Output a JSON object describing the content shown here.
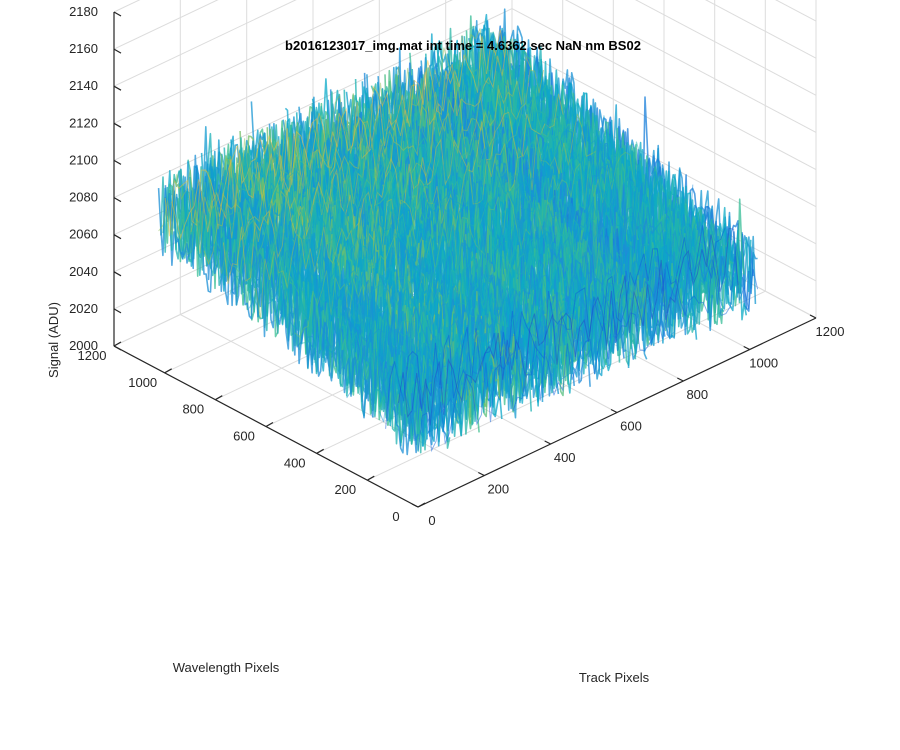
{
  "chart_data": {
    "type": "surface",
    "title": "b2016123017_img.mat int time = 4.6362 sec  NaN nm BS02",
    "xlabel": "Track Pixels",
    "ylabel": "Wavelength Pixels",
    "zlabel": "Signal (ADU)",
    "xlim": [
      0,
      1200
    ],
    "ylim": [
      0,
      1200
    ],
    "zlim": [
      2000,
      2180
    ],
    "xticks": [
      "0",
      "200",
      "400",
      "600",
      "800",
      "1000",
      "1200"
    ],
    "yticks": [
      "0",
      "200",
      "400",
      "600",
      "800",
      "1000",
      "1200"
    ],
    "zticks": [
      "2000",
      "2020",
      "2040",
      "2060",
      "2080",
      "2100",
      "2120",
      "2140",
      "2160",
      "2180"
    ],
    "grid": true,
    "colormap": "parula",
    "surface_extent": {
      "x": [
        0,
        1024
      ],
      "y": [
        0,
        1024
      ]
    },
    "surface_signal": {
      "low_corner_x0_y0": 2045,
      "high_corner_x0_y1024": 2085,
      "mid": 2075,
      "far_corner_x1024_y1024": 2085,
      "near_corner_x1024_y0": 2040,
      "noise_span": 45
    }
  },
  "colors": {
    "axis": "#262626",
    "grid": "#dcdcdc",
    "colormap_stops": [
      "#3e26a8",
      "#0f5ce0",
      "#1e8bd8",
      "#09a9c9",
      "#3bbe8f",
      "#a2c04b",
      "#f2b93a",
      "#f9e029"
    ]
  }
}
